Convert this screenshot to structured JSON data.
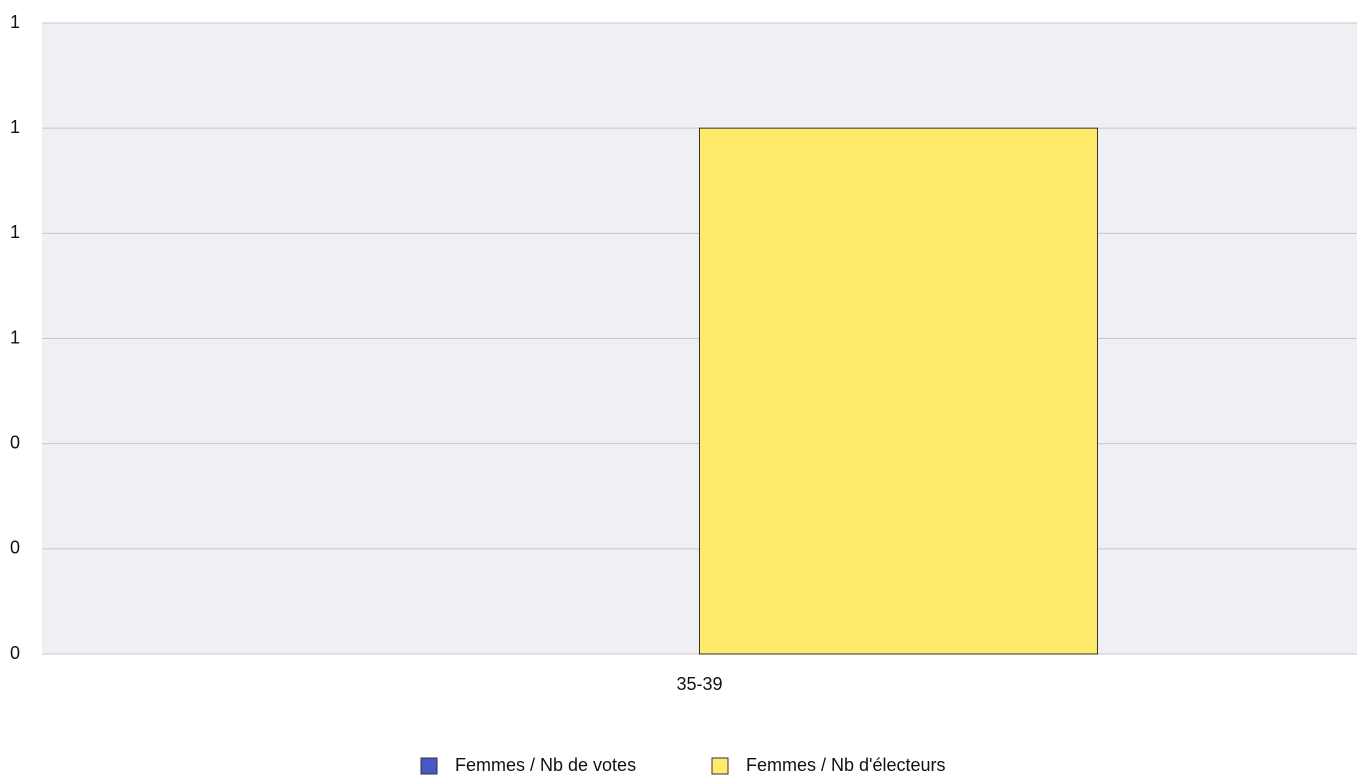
{
  "chart_data": {
    "type": "bar",
    "categories": [
      "35-39"
    ],
    "series": [
      {
        "name": "Femmes / Nb de votes",
        "color": "#4a57c8",
        "values": [
          0
        ]
      },
      {
        "name": "Femmes / Nb d'électeurs",
        "color": "#ffea6b",
        "values": [
          1
        ]
      }
    ],
    "ylim": [
      0,
      1.2
    ],
    "yticks": [
      0,
      {
        "value": 0.2,
        "label": "0"
      },
      {
        "value": 0.4,
        "label": "0"
      },
      {
        "value": 0.6,
        "label": "1"
      },
      {
        "value": 0.8,
        "label": "1"
      },
      1,
      {
        "value": 1.2,
        "label": "1"
      }
    ],
    "grid": true,
    "legend": "bottom"
  }
}
